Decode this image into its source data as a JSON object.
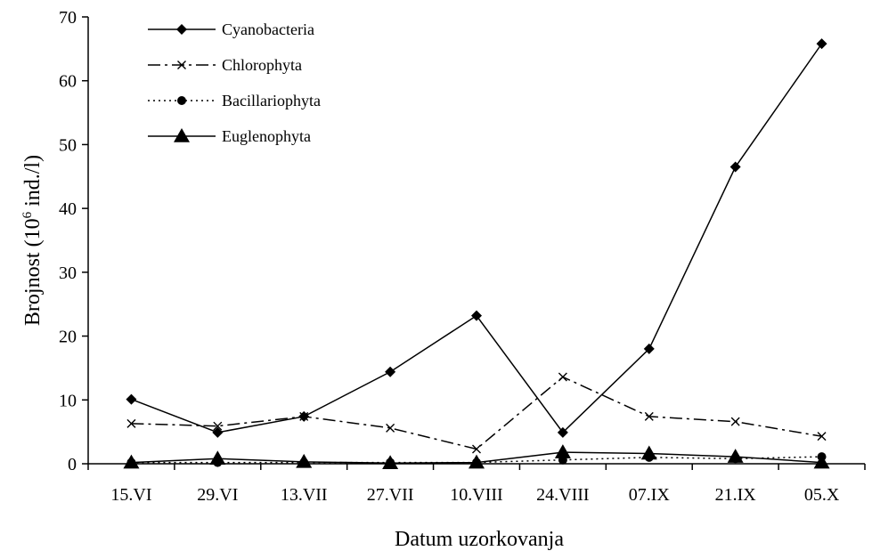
{
  "chart_data": {
    "type": "line",
    "categories": [
      "15.VI",
      "29.VI",
      "13.VII",
      "27.VII",
      "10.VIII",
      "24.VIII",
      "07.IX",
      "21.IX",
      "05.X"
    ],
    "series": [
      {
        "name": "Cyanobacteria",
        "values": [
          10.1,
          4.9,
          7.4,
          14.4,
          23.2,
          4.9,
          18.0,
          46.5,
          65.8
        ],
        "marker": "diamond",
        "dash": "solid",
        "marker_size": "small"
      },
      {
        "name": "Chlorophyta",
        "values": [
          6.3,
          5.9,
          7.4,
          5.6,
          2.3,
          13.6,
          7.4,
          6.6,
          4.3
        ],
        "marker": "x",
        "dash": "dashdot"
      },
      {
        "name": "Bacillariophyta",
        "values": [
          0.2,
          0.2,
          0.2,
          0.2,
          0.2,
          0.6,
          1.0,
          0.8,
          1.1
        ],
        "marker": "circle",
        "dash": "dotted"
      },
      {
        "name": "Euglenophyta",
        "values": [
          0.2,
          0.8,
          0.3,
          0.1,
          0.2,
          1.8,
          1.6,
          1.1,
          0.2
        ],
        "marker": "triangle",
        "dash": "solid",
        "marker_size": "large"
      }
    ],
    "title": "",
    "xlabel": "Datum uzorkovanja",
    "ylabel": {
      "main": "Brojnost (10",
      "superscript": "6",
      "unit": " ind./l)"
    },
    "ylim": [
      0,
      70
    ],
    "yticks": [
      0,
      10,
      20,
      30,
      40,
      50,
      60,
      70
    ],
    "grid": false,
    "legend": "top-left"
  }
}
